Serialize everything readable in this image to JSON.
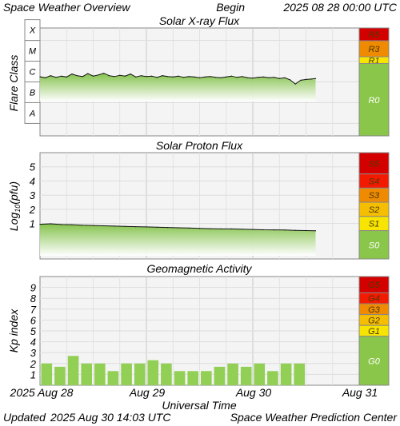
{
  "header": {
    "title": "Space Weather Overview",
    "begin_label": "Begin",
    "begin_value": "2025 08 28 00:00 UTC"
  },
  "footer": {
    "updated_label": "Updated",
    "updated_value": "2025 Aug 30 14:03 UTC",
    "credit": "Space Weather Prediction Center"
  },
  "colors": {
    "plot_bg": "#f4f4f4",
    "grid": "#e0e0e0",
    "green": "#8ac64a",
    "green_light": "#b7de8e",
    "bar": "#92cf55",
    "level_5": "#d40000",
    "level_4": "#f21a00",
    "level_3": "#f08a00",
    "level_2": "#f5be00",
    "level_1": "#f7e400",
    "level_0": "#8ac64a",
    "level_text": "#4a3a00"
  },
  "chart_data": [
    {
      "type": "area",
      "title": "Solar X-ray Flux",
      "ylabel": "Flare Class",
      "y_scale": "log",
      "y_ticks": [
        "A",
        "B",
        "C",
        "M",
        "X"
      ],
      "ylim_log10_wm2": [
        -8.6,
        -3.4
      ],
      "x_days": [
        "2025 Aug 28",
        "Aug 29",
        "Aug 30",
        "Aug 31"
      ],
      "xlim_days": [
        0,
        3
      ],
      "series": [
        {
          "x": [
            0.0,
            0.05,
            0.1,
            0.15,
            0.2,
            0.25,
            0.3,
            0.35,
            0.4,
            0.45,
            0.5,
            0.55,
            0.6,
            0.65,
            0.7,
            0.75,
            0.8,
            0.85,
            0.9,
            0.95,
            1.0,
            1.05,
            1.1,
            1.15,
            1.2,
            1.25,
            1.3,
            1.35,
            1.4,
            1.45,
            1.5,
            1.55,
            1.6,
            1.65,
            1.7,
            1.75,
            1.8,
            1.85,
            1.9,
            1.95,
            2.0,
            2.05,
            2.1,
            2.15,
            2.2,
            2.25,
            2.3,
            2.35,
            2.4,
            2.45,
            2.5,
            2.55,
            2.59
          ],
          "y": [
            -5.75,
            -5.8,
            -5.7,
            -5.78,
            -5.72,
            -5.76,
            -5.62,
            -5.7,
            -5.74,
            -5.6,
            -5.72,
            -5.66,
            -5.58,
            -5.7,
            -5.74,
            -5.68,
            -5.72,
            -5.62,
            -5.76,
            -5.7,
            -5.74,
            -5.72,
            -5.78,
            -5.7,
            -5.74,
            -5.76,
            -5.72,
            -5.78,
            -5.74,
            -5.76,
            -5.8,
            -5.76,
            -5.74,
            -5.78,
            -5.8,
            -5.76,
            -5.72,
            -5.78,
            -5.74,
            -5.8,
            -5.82,
            -5.78,
            -5.76,
            -5.8,
            -5.78,
            -5.84,
            -5.8,
            -5.9,
            -6.1,
            -5.92,
            -5.88,
            -5.86,
            -5.84
          ]
        }
      ],
      "scale_levels": [
        {
          "label": "R5",
          "level": 5
        },
        {
          "label": "R3",
          "level": 3
        },
        {
          "label": "R1",
          "level": 1
        },
        {
          "label": "R0",
          "level": 0
        }
      ]
    },
    {
      "type": "area",
      "title": "Solar Proton Flux",
      "ylabel": "Log10(pfu)",
      "y_ticks": [
        "1",
        "2",
        "3",
        "4",
        "5"
      ],
      "ylim": [
        -1.5,
        6
      ],
      "xlim_days": [
        0,
        3
      ],
      "series": [
        {
          "x": [
            0.0,
            0.1,
            0.2,
            0.3,
            0.4,
            0.5,
            0.6,
            0.7,
            0.8,
            0.9,
            1.0,
            1.1,
            1.2,
            1.3,
            1.4,
            1.5,
            1.6,
            1.7,
            1.8,
            1.9,
            2.0,
            2.1,
            2.2,
            2.3,
            2.4,
            2.5,
            2.59
          ],
          "y": [
            0.95,
            0.98,
            0.93,
            0.92,
            0.88,
            0.86,
            0.84,
            0.82,
            0.8,
            0.78,
            0.76,
            0.74,
            0.72,
            0.7,
            0.68,
            0.66,
            0.64,
            0.62,
            0.62,
            0.6,
            0.58,
            0.56,
            0.55,
            0.54,
            0.52,
            0.5,
            0.49
          ]
        }
      ],
      "scale_levels": [
        {
          "label": "S5",
          "level": 5
        },
        {
          "label": "S4",
          "level": 4
        },
        {
          "label": "S3",
          "level": 3
        },
        {
          "label": "S2",
          "level": 2
        },
        {
          "label": "S1",
          "level": 1
        },
        {
          "label": "S0",
          "level": 0
        }
      ]
    },
    {
      "type": "bar",
      "title": "Geomagnetic Activity",
      "ylabel": "Kp index",
      "y_ticks": [
        "1",
        "2",
        "3",
        "4",
        "5",
        "6",
        "7",
        "8",
        "9"
      ],
      "ylim": [
        0,
        10
      ],
      "xlim_days": [
        0,
        3
      ],
      "bar_width_hours": 3,
      "values": [
        2.0,
        1.7,
        2.7,
        2.0,
        2.0,
        1.3,
        2.0,
        2.0,
        2.3,
        2.0,
        1.3,
        1.3,
        1.3,
        1.7,
        2.0,
        1.7,
        2.0,
        1.3,
        2.0,
        2.0
      ],
      "scale_levels": [
        {
          "label": "G5",
          "level": 5
        },
        {
          "label": "G4",
          "level": 4
        },
        {
          "label": "G3",
          "level": 3
        },
        {
          "label": "G2",
          "level": 2
        },
        {
          "label": "G1",
          "level": 1
        },
        {
          "label": "G0",
          "level": 0
        }
      ]
    }
  ],
  "xaxis": {
    "ticks": [
      "2025 Aug 28",
      "Aug 29",
      "Aug 30",
      "Aug 31"
    ],
    "label": "Universal Time"
  }
}
